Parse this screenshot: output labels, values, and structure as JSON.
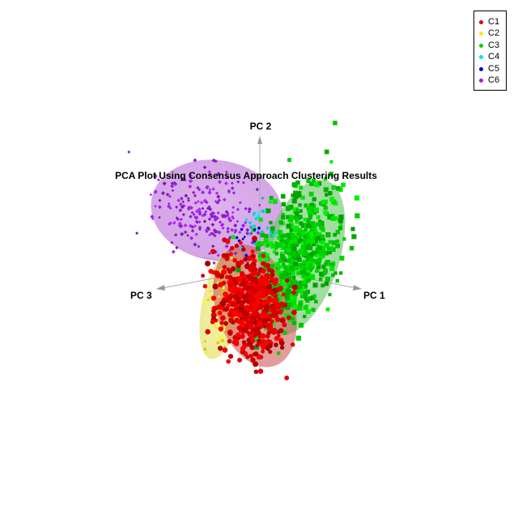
{
  "chart_data": {
    "type": "scatter",
    "title": "PCA Plot Using Consensus Approach Clustering Results",
    "axes": {
      "x": "PC 1",
      "y": "PC 2",
      "z": "PC 3"
    },
    "legend": {
      "position": "top-right",
      "entries": [
        {
          "name": "C1",
          "color": "#e00000"
        },
        {
          "name": "C2",
          "color": "#f0f000"
        },
        {
          "name": "C3",
          "color": "#00d000"
        },
        {
          "name": "C4",
          "color": "#00e5e5"
        },
        {
          "name": "C5",
          "color": "#0000d0"
        },
        {
          "name": "C6",
          "color": "#9a1fe0"
        }
      ]
    },
    "grid": false,
    "series": [
      {
        "name": "C1",
        "color": "#e00000",
        "approx_points": 550
      },
      {
        "name": "C2",
        "color": "#f0f000",
        "approx_points": 60
      },
      {
        "name": "C3",
        "color": "#00d000",
        "approx_points": 650
      },
      {
        "name": "C4",
        "color": "#00e5e5",
        "approx_points": 25
      },
      {
        "name": "C5",
        "color": "#0000d0",
        "approx_points": 12
      },
      {
        "name": "C6",
        "color": "#9a1fe0",
        "approx_points": 220
      }
    ]
  }
}
